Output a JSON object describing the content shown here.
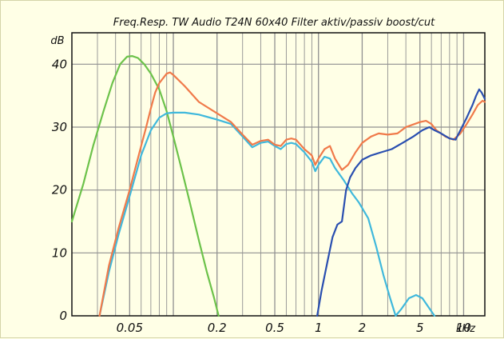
{
  "chart_data": {
    "type": "line",
    "title": "Freq.Resp. TW Audio T24N 60x40 Filter aktiv/passiv boost/cut",
    "ylabel": "dB",
    "xlabel": "kHz",
    "x_scale": "log",
    "xlim": [
      0.02,
      14
    ],
    "ylim": [
      0,
      45
    ],
    "grid": true,
    "colors": {
      "background": "#ffffe6",
      "grid": "#909090",
      "axis": "#111111",
      "green": "#6cc24a",
      "orange": "#f07a4a",
      "cyan": "#3fb8dc",
      "blue": "#2a4fb0"
    },
    "y_ticks": [
      {
        "value": 0,
        "label": "0"
      },
      {
        "value": 10,
        "label": "10"
      },
      {
        "value": 20,
        "label": "20"
      },
      {
        "value": 30,
        "label": "30"
      },
      {
        "value": 40,
        "label": "40"
      }
    ],
    "x_ticks": [
      {
        "value": 0.05,
        "label": "0.05"
      },
      {
        "value": 0.2,
        "label": "0.2"
      },
      {
        "value": 0.5,
        "label": "0.5"
      },
      {
        "value": 1,
        "label": "1"
      },
      {
        "value": 2,
        "label": "2"
      },
      {
        "value": 5,
        "label": "5"
      },
      {
        "value": 10,
        "label": "10"
      }
    ],
    "series": [
      {
        "color": "#6cc24a",
        "points": [
          [
            0.02,
            15
          ],
          [
            0.024,
            21
          ],
          [
            0.028,
            27
          ],
          [
            0.033,
            32.5
          ],
          [
            0.038,
            37
          ],
          [
            0.043,
            40
          ],
          [
            0.048,
            41.2
          ],
          [
            0.052,
            41.3
          ],
          [
            0.057,
            41
          ],
          [
            0.063,
            40
          ],
          [
            0.07,
            38.5
          ],
          [
            0.08,
            36
          ],
          [
            0.09,
            32.5
          ],
          [
            0.1,
            28.5
          ],
          [
            0.115,
            23
          ],
          [
            0.13,
            18
          ],
          [
            0.15,
            12
          ],
          [
            0.17,
            7
          ],
          [
            0.19,
            3
          ],
          [
            0.205,
            0
          ]
        ]
      },
      {
        "color": "#3fb8dc",
        "points": [
          [
            0.031,
            0
          ],
          [
            0.036,
            7
          ],
          [
            0.042,
            13
          ],
          [
            0.05,
            19
          ],
          [
            0.06,
            25.5
          ],
          [
            0.07,
            29.5
          ],
          [
            0.08,
            31.5
          ],
          [
            0.09,
            32.2
          ],
          [
            0.1,
            32.3
          ],
          [
            0.12,
            32.3
          ],
          [
            0.15,
            32
          ],
          [
            0.2,
            31.2
          ],
          [
            0.25,
            30.5
          ],
          [
            0.3,
            28.5
          ],
          [
            0.35,
            26.8
          ],
          [
            0.4,
            27.5
          ],
          [
            0.45,
            27.7
          ],
          [
            0.5,
            27
          ],
          [
            0.55,
            26.5
          ],
          [
            0.6,
            27.3
          ],
          [
            0.65,
            27.5
          ],
          [
            0.7,
            27.3
          ],
          [
            0.8,
            26
          ],
          [
            0.9,
            24.5
          ],
          [
            0.95,
            23
          ],
          [
            1.0,
            24
          ],
          [
            1.1,
            25.3
          ],
          [
            1.2,
            25
          ],
          [
            1.3,
            23.5
          ],
          [
            1.5,
            21.5
          ],
          [
            1.7,
            19.5
          ],
          [
            1.9,
            18
          ],
          [
            2.2,
            15.5
          ],
          [
            2.5,
            11
          ],
          [
            2.8,
            6.5
          ],
          [
            3.1,
            3
          ],
          [
            3.4,
            0
          ],
          [
            3.7,
            1
          ],
          [
            4.2,
            2.8
          ],
          [
            4.7,
            3.3
          ],
          [
            5.2,
            2.8
          ],
          [
            5.8,
            1.2
          ],
          [
            6.3,
            0
          ]
        ]
      },
      {
        "color": "#f07a4a",
        "points": [
          [
            0.031,
            0
          ],
          [
            0.036,
            8
          ],
          [
            0.042,
            14
          ],
          [
            0.05,
            20
          ],
          [
            0.06,
            27
          ],
          [
            0.065,
            30
          ],
          [
            0.07,
            33
          ],
          [
            0.075,
            35.5
          ],
          [
            0.08,
            37
          ],
          [
            0.09,
            38.5
          ],
          [
            0.095,
            38.7
          ],
          [
            0.1,
            38.3
          ],
          [
            0.12,
            36.5
          ],
          [
            0.15,
            34
          ],
          [
            0.2,
            32.2
          ],
          [
            0.25,
            30.8
          ],
          [
            0.3,
            28.8
          ],
          [
            0.35,
            27.2
          ],
          [
            0.4,
            27.8
          ],
          [
            0.45,
            28
          ],
          [
            0.5,
            27.2
          ],
          [
            0.55,
            27
          ],
          [
            0.6,
            28
          ],
          [
            0.65,
            28.2
          ],
          [
            0.7,
            28
          ],
          [
            0.8,
            26.5
          ],
          [
            0.9,
            25.5
          ],
          [
            0.95,
            24
          ],
          [
            1.0,
            25
          ],
          [
            1.1,
            26.5
          ],
          [
            1.2,
            27
          ],
          [
            1.3,
            25
          ],
          [
            1.45,
            23.2
          ],
          [
            1.6,
            24
          ],
          [
            1.8,
            26
          ],
          [
            2.0,
            27.5
          ],
          [
            2.3,
            28.5
          ],
          [
            2.6,
            29
          ],
          [
            3.0,
            28.8
          ],
          [
            3.5,
            29
          ],
          [
            4.0,
            30
          ],
          [
            5.0,
            30.8
          ],
          [
            5.5,
            31
          ],
          [
            6.0,
            30.5
          ],
          [
            6.5,
            29.5
          ],
          [
            7.5,
            28.5
          ],
          [
            8.5,
            28
          ],
          [
            9.5,
            29
          ],
          [
            10.5,
            30.5
          ],
          [
            11.5,
            32
          ],
          [
            12.5,
            33.5
          ],
          [
            13.5,
            34.2
          ],
          [
            14,
            34
          ]
        ]
      },
      {
        "color": "#2a4fb0",
        "points": [
          [
            0.98,
            0
          ],
          [
            1.05,
            4
          ],
          [
            1.15,
            8.5
          ],
          [
            1.25,
            12.5
          ],
          [
            1.35,
            14.5
          ],
          [
            1.45,
            15
          ],
          [
            1.55,
            20
          ],
          [
            1.65,
            22
          ],
          [
            1.8,
            23.5
          ],
          [
            2.0,
            24.8
          ],
          [
            2.3,
            25.5
          ],
          [
            2.7,
            26
          ],
          [
            3.2,
            26.5
          ],
          [
            3.8,
            27.5
          ],
          [
            4.5,
            28.5
          ],
          [
            5.2,
            29.5
          ],
          [
            5.8,
            30
          ],
          [
            6.3,
            29.5
          ],
          [
            7.0,
            29
          ],
          [
            8.0,
            28.2
          ],
          [
            8.8,
            28
          ],
          [
            9.5,
            29.5
          ],
          [
            10.5,
            31.5
          ],
          [
            11.5,
            33.5
          ],
          [
            12.2,
            35
          ],
          [
            12.8,
            36
          ],
          [
            13.3,
            35.5
          ],
          [
            14,
            34.5
          ]
        ]
      }
    ]
  }
}
